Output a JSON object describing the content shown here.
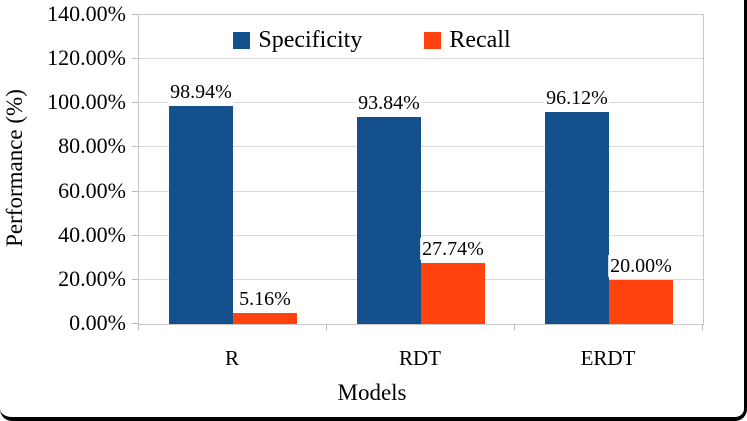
{
  "chart_data": {
    "type": "bar",
    "title": "",
    "categories": [
      "R",
      "RDT",
      "ERDT"
    ],
    "series": [
      {
        "name": "Specificity",
        "color": "#14508C",
        "values": [
          98.94,
          93.84,
          96.12
        ],
        "labels": [
          "98.94%",
          "93.84%",
          "96.12%"
        ]
      },
      {
        "name": "Recall",
        "color": "#FF420E",
        "values": [
          5.16,
          27.74,
          20.0
        ],
        "labels": [
          "5.16%",
          "27.74%",
          "20.00%"
        ]
      }
    ],
    "xlabel": "Models",
    "ylabel": "Performance (%)",
    "ylim": [
      0,
      140
    ],
    "ytick_step": 20,
    "yticks": [
      "0.00%",
      "20.00%",
      "40.00%",
      "60.00%",
      "80.00%",
      "100.00%",
      "120.00%",
      "140.00%"
    ],
    "grid": true,
    "legend_position": "top-center",
    "colors": {
      "gridline": "#d9d9d9",
      "plot_border": "#c9c9c9",
      "frame_border": "#000000",
      "text": "#000000",
      "background": "#ffffff"
    }
  }
}
